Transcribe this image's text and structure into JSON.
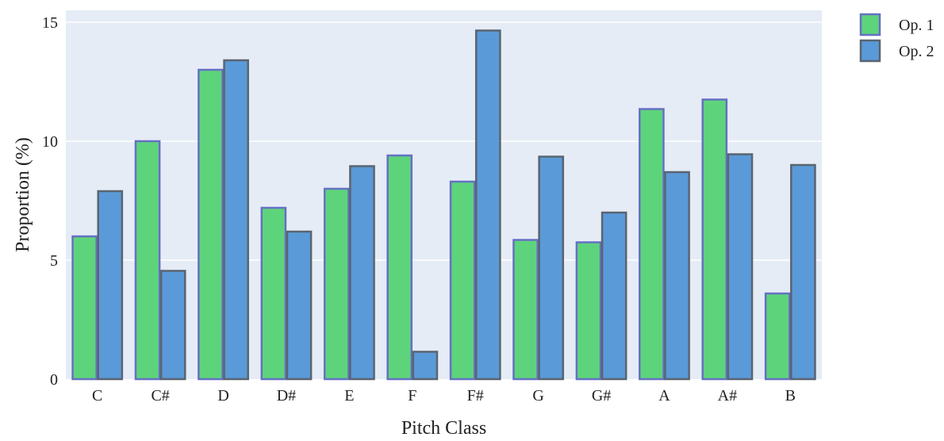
{
  "chart_data": {
    "type": "bar",
    "xlabel": "Pitch Class",
    "ylabel": "Proportion (%)",
    "ylim": [
      0,
      15
    ],
    "yticks": [
      0,
      5,
      10,
      15
    ],
    "grid": true,
    "legend_position": "top-right",
    "categories": [
      "C",
      "C#",
      "D",
      "D#",
      "E",
      "F",
      "F#",
      "G",
      "G#",
      "A",
      "A#",
      "B"
    ],
    "series": [
      {
        "name": "Op. 1",
        "color": "#5dd47b",
        "edge_color": "#6670c4",
        "values": [
          6.0,
          10.0,
          13.0,
          7.2,
          8.0,
          9.4,
          8.3,
          5.85,
          5.75,
          11.35,
          11.75,
          3.6
        ]
      },
      {
        "name": "Op. 2",
        "color": "#5a9ad8",
        "edge_color": "#5a6470",
        "values": [
          7.9,
          4.55,
          13.4,
          6.2,
          8.95,
          1.15,
          14.65,
          9.35,
          7.0,
          8.7,
          9.45,
          9.0
        ]
      }
    ],
    "plot_bg": "#e5ecf6",
    "grid_color": "#ffffff"
  }
}
